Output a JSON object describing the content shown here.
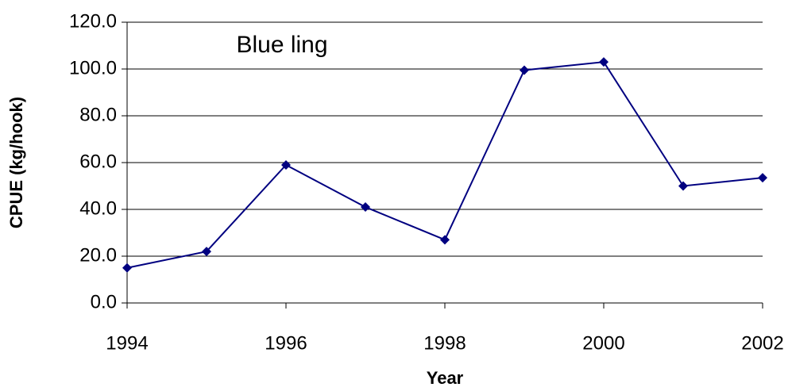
{
  "chart_data": {
    "type": "line",
    "x_label": "Year",
    "y_label": "CPUE (kg/hook)",
    "annotation": "Blue ling",
    "x": [
      1994,
      1995,
      1996,
      1997,
      1998,
      1999,
      2000,
      2001,
      2002
    ],
    "series": [
      {
        "name": "Blue ling",
        "color": "#000080",
        "values": [
          15,
          22,
          59,
          41,
          27,
          99.5,
          103,
          50,
          53.5
        ]
      }
    ],
    "xlim": [
      1994,
      2002
    ],
    "xticks": [
      1994,
      1996,
      1998,
      2000,
      2002
    ],
    "ylim": [
      0,
      120
    ],
    "yticks": [
      {
        "value": 0,
        "label": "0.0"
      },
      {
        "value": 20,
        "label": "20.0"
      },
      {
        "value": 40,
        "label": "40.0"
      },
      {
        "value": 60,
        "label": "60.0"
      },
      {
        "value": 80,
        "label": "80.0"
      },
      {
        "value": 100,
        "label": "100.0"
      },
      {
        "value": 120,
        "label": "120.0"
      }
    ],
    "grid": true
  }
}
